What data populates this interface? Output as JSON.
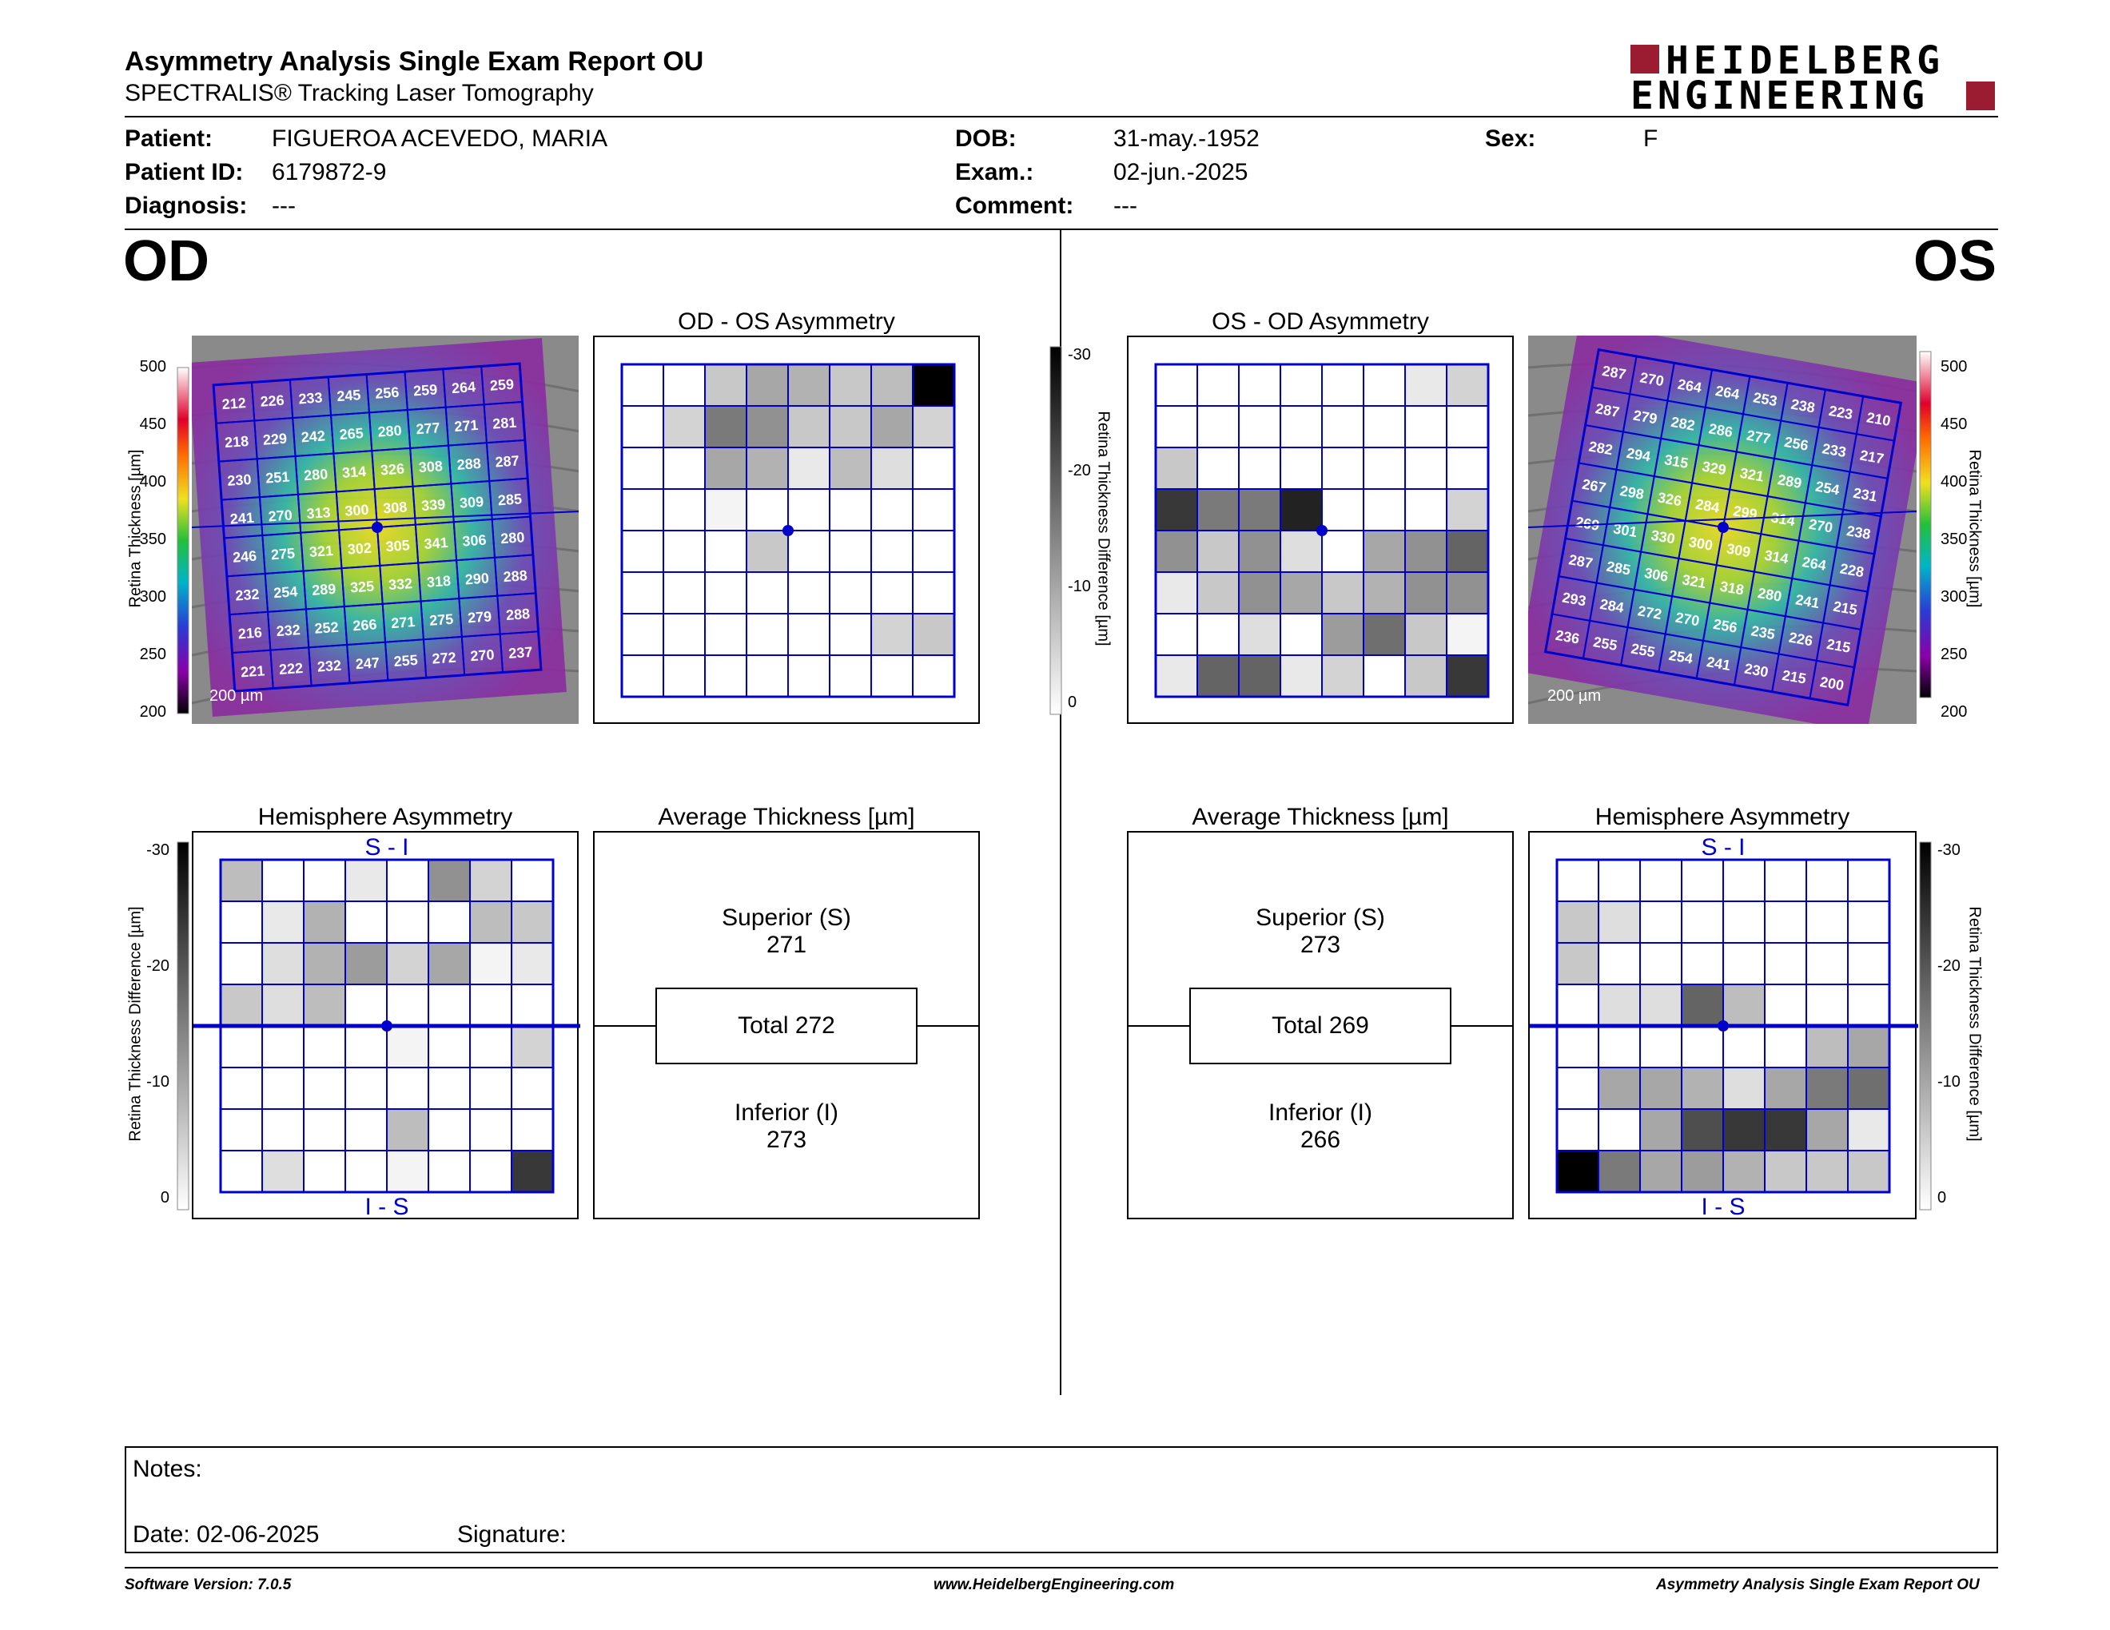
{
  "header": {
    "title": "Asymmetry Analysis Single Exam Report OU",
    "subtitle": "SPECTRALIS® Tracking Laser Tomography",
    "logo_line1": "HEIDELBERG",
    "logo_line2": "ENGINEERING"
  },
  "patient": {
    "patient_label": "Patient:",
    "patient_value": "FIGUEROA ACEVEDO, MARIA",
    "id_label": "Patient ID:",
    "id_value": "6179872-9",
    "diag_label": "Diagnosis:",
    "diag_value": "---",
    "dob_label": "DOB:",
    "dob_value": "31-may.-1952",
    "exam_label": "Exam.:",
    "exam_value": "02-jun.-2025",
    "comment_label": "Comment:",
    "comment_value": "---",
    "sex_label": "Sex:",
    "sex_value": "F"
  },
  "eyes": {
    "od": "OD",
    "os": "OS"
  },
  "od": {
    "scale_label": "200 µm",
    "thickness_axis": "Retina Thickness [µm]",
    "thickness_ticks": [
      "500",
      "450",
      "400",
      "350",
      "300",
      "250",
      "200"
    ],
    "grid": [
      [
        212,
        226,
        233,
        245,
        256,
        259,
        264,
        259
      ],
      [
        218,
        229,
        242,
        265,
        280,
        277,
        271,
        281
      ],
      [
        230,
        251,
        280,
        314,
        326,
        308,
        288,
        287
      ],
      [
        241,
        270,
        313,
        300,
        308,
        339,
        309,
        285
      ],
      [
        246,
        275,
        321,
        302,
        305,
        341,
        306,
        280
      ],
      [
        232,
        254,
        289,
        325,
        332,
        318,
        290,
        288
      ],
      [
        216,
        232,
        252,
        266,
        271,
        275,
        279,
        288
      ],
      [
        221,
        222,
        232,
        247,
        255,
        272,
        270,
        237
      ]
    ],
    "asym_title": "OD - OS Asymmetry",
    "asym_gray": [
      [
        0,
        0,
        5,
        8,
        7,
        5,
        6,
        28
      ],
      [
        0,
        4,
        12,
        10,
        5,
        5,
        8,
        4
      ],
      [
        0,
        0,
        8,
        7,
        2,
        6,
        3,
        0
      ],
      [
        0,
        0,
        1,
        0,
        0,
        0,
        0,
        0
      ],
      [
        0,
        0,
        0,
        5,
        0,
        0,
        0,
        0
      ],
      [
        0,
        0,
        0,
        0,
        0,
        0,
        0,
        0
      ],
      [
        0,
        0,
        0,
        0,
        0,
        0,
        4,
        5
      ],
      [
        0,
        0,
        0,
        0,
        0,
        0,
        0,
        0
      ]
    ],
    "hemi_title": "Hemisphere Asymmetry",
    "hemi_top": "S - I",
    "hemi_bottom": "I - S",
    "hemi_gray": [
      [
        6,
        0,
        0,
        2,
        0,
        10,
        4,
        0
      ],
      [
        0,
        2,
        7,
        0,
        0,
        0,
        6,
        5
      ],
      [
        0,
        3,
        7,
        9,
        4,
        8,
        1,
        2
      ],
      [
        5,
        3,
        6,
        0,
        0,
        0,
        0,
        0
      ],
      [
        0,
        0,
        0,
        0,
        1,
        0,
        0,
        4
      ],
      [
        0,
        0,
        0,
        0,
        0,
        0,
        0,
        0
      ],
      [
        0,
        0,
        0,
        0,
        6,
        0,
        0,
        0
      ],
      [
        0,
        3,
        0,
        0,
        1,
        0,
        0,
        18
      ]
    ],
    "avg_title": "Average Thickness [µm]",
    "superior_label": "Superior (S)",
    "superior_value": "271",
    "total": "Total 272",
    "inferior_label": "Inferior (I)",
    "inferior_value": "273"
  },
  "os": {
    "scale_label": "200 µm",
    "thickness_axis": "Retina Thickness [µm]",
    "thickness_ticks": [
      "500",
      "450",
      "400",
      "350",
      "300",
      "250",
      "200"
    ],
    "grid": [
      [
        287,
        270,
        264,
        264,
        253,
        238,
        223,
        210
      ],
      [
        287,
        279,
        282,
        286,
        277,
        256,
        233,
        217
      ],
      [
        282,
        294,
        315,
        329,
        321,
        289,
        254,
        231
      ],
      [
        267,
        298,
        326,
        284,
        299,
        314,
        270,
        238
      ],
      [
        269,
        301,
        330,
        300,
        309,
        314,
        264,
        228
      ],
      [
        287,
        285,
        306,
        321,
        318,
        280,
        241,
        215
      ],
      [
        293,
        284,
        272,
        270,
        256,
        235,
        226,
        215
      ],
      [
        236,
        255,
        255,
        254,
        241,
        230,
        215,
        200
      ]
    ],
    "asym_title": "OS - OD Asymmetry",
    "asym_gray": [
      [
        0,
        0,
        0,
        0,
        0,
        0,
        2,
        4
      ],
      [
        0,
        0,
        0,
        0,
        0,
        0,
        0,
        0
      ],
      [
        5,
        0,
        0,
        0,
        0,
        0,
        0,
        0
      ],
      [
        18,
        12,
        12,
        20,
        0,
        0,
        0,
        4
      ],
      [
        10,
        5,
        10,
        3,
        0,
        8,
        10,
        14
      ],
      [
        2,
        5,
        10,
        8,
        5,
        7,
        10,
        10
      ],
      [
        0,
        0,
        3,
        0,
        9,
        13,
        5,
        1
      ],
      [
        2,
        14,
        14,
        2,
        4,
        0,
        5,
        18
      ]
    ],
    "hemi_title": "Hemisphere Asymmetry",
    "hemi_top": "S - I",
    "hemi_bottom": "I - S",
    "hemi_gray": [
      [
        0,
        0,
        0,
        0,
        0,
        0,
        0,
        0
      ],
      [
        5,
        3,
        0,
        0,
        0,
        0,
        0,
        0
      ],
      [
        5,
        0,
        0,
        0,
        0,
        0,
        0,
        0
      ],
      [
        0,
        3,
        3,
        14,
        6,
        0,
        0,
        0
      ],
      [
        0,
        0,
        0,
        0,
        0,
        0,
        6,
        8
      ],
      [
        0,
        8,
        8,
        7,
        3,
        8,
        12,
        13
      ],
      [
        0,
        0,
        8,
        16,
        18,
        18,
        8,
        2
      ],
      [
        30,
        12,
        8,
        9,
        7,
        5,
        5,
        5
      ]
    ],
    "avg_title": "Average Thickness [µm]",
    "superior_label": "Superior (S)",
    "superior_value": "273",
    "total": "Total 269",
    "inferior_label": "Inferior (I)",
    "inferior_value": "266"
  },
  "diff_scale": {
    "axis": "Retina Thickness Difference [µm]",
    "ticks": [
      "-30",
      "-20",
      "-10",
      "0"
    ]
  },
  "notes": {
    "notes_label": "Notes:",
    "date_label": "Date: 02-06-2025",
    "signature_label": "Signature:"
  },
  "footer": {
    "version": "Software Version: 7.0.5",
    "url": "www.HeidelbergEngineering.com",
    "report": "Asymmetry Analysis Single Exam Report OU"
  },
  "colors": {
    "grid_blue": "#0000cc",
    "logo_red": "#9b1b30"
  }
}
